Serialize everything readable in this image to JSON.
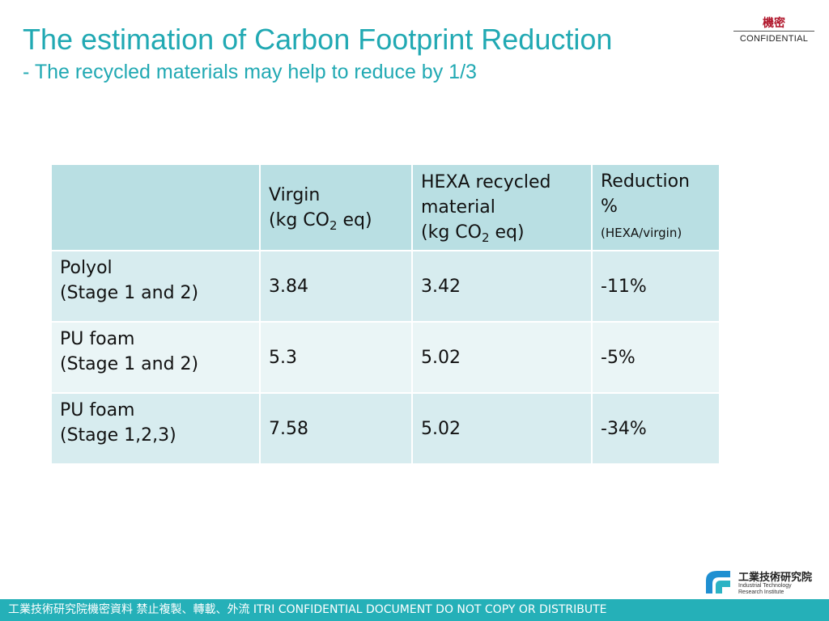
{
  "slide": {
    "title": "The estimation of Carbon Footprint Reduction",
    "subtitle": "- The recycled materials may help to reduce by 1/3"
  },
  "confidential": {
    "cn": "機密",
    "en": "CONFIDENTIAL"
  },
  "table": {
    "headers": [
      "",
      "Virgin",
      "HEXA recycled",
      "Reduction"
    ],
    "header_lines": {
      "virgin_unit_prefix": "(kg CO",
      "sub": "2",
      "unit_suffix": " eq)",
      "hexa_line2": "material",
      "reduction_line2": "%",
      "reduction_note": "(HEXA/virgin)"
    },
    "rows": [
      {
        "line1": "Polyol",
        "line2": "(Stage 1 and 2)",
        "virgin": "3.84",
        "hexa": "3.42",
        "reduction": "-11%"
      },
      {
        "line1": "PU foam",
        "line2": "(Stage 1 and 2)",
        "virgin": "5.3",
        "hexa": "5.02",
        "reduction": "-5%"
      },
      {
        "line1": "PU foam",
        "line2": "(Stage 1,2,3)",
        "virgin": "7.58",
        "hexa": "5.02",
        "reduction": "-34%"
      }
    ]
  },
  "logo": {
    "cn": "工業技術研究院",
    "en1": "Industrial Technology",
    "en2": "Research Institute",
    "mark": "itri-logo-icon"
  },
  "footer": {
    "text": "工業技術研究院機密資料 禁止複製、轉載、外流 ITRI CONFIDENTIAL DOCUMENT DO NOT COPY OR DISTRIBUTE"
  },
  "colors": {
    "accent": "#21a9b3",
    "header_cell": "#b9dfe3",
    "row_dark": "#d7ecef",
    "row_light": "#eaf5f6",
    "footer_bar": "#25b0b8",
    "confidential_red": "#b0152a"
  }
}
